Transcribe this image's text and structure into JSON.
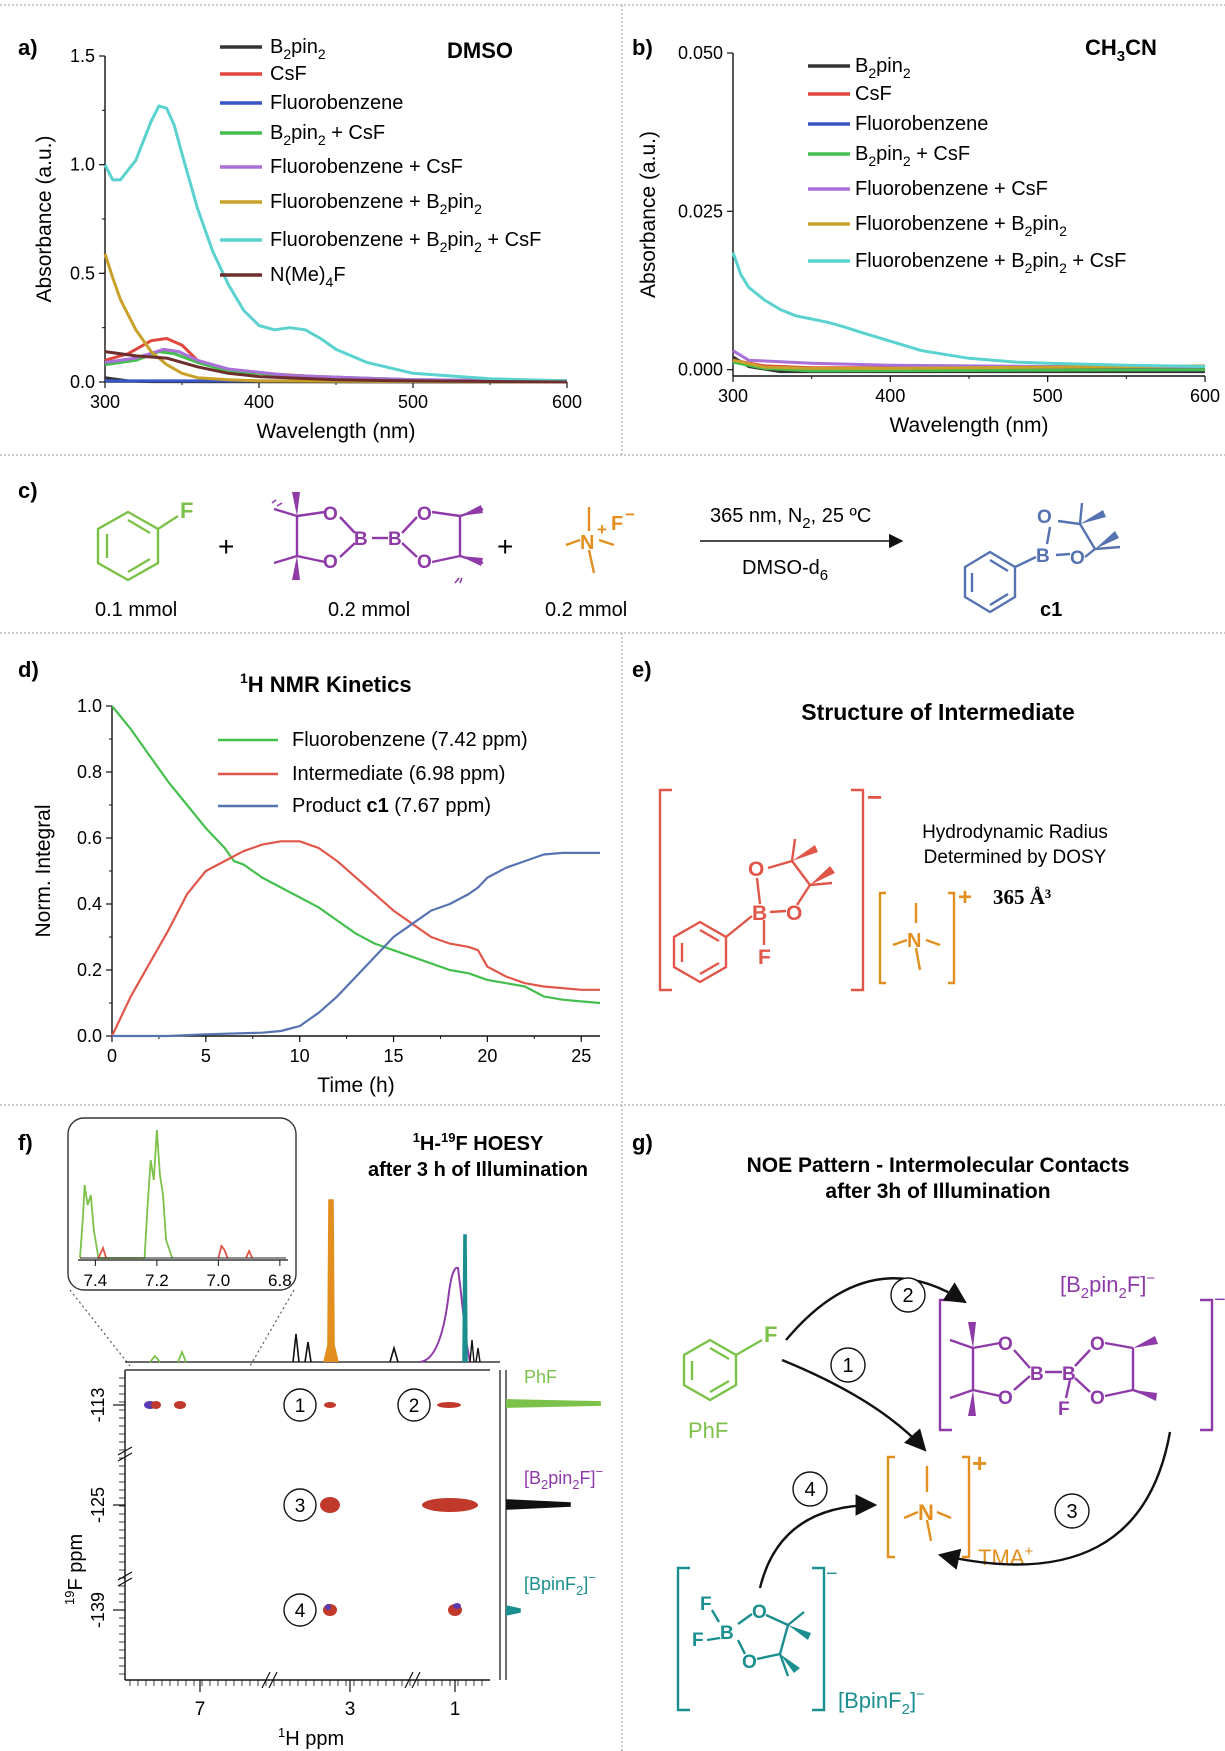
{
  "colors": {
    "black": "#333333",
    "red": "#e0463c",
    "blue": "#3a55c4",
    "green": "#44bf4e",
    "purple": "#a970d8",
    "gold": "#c9a12a",
    "cyan": "#5ad2cf",
    "brown": "#6e2e2e",
    "phf_green": "#7cc24a",
    "b2pin_purple": "#8e3aa8",
    "tma_orange": "#e38f1f",
    "product_blue": "#5573b0",
    "interm_red": "#e0574a",
    "teal": "#1b8f8f",
    "cross_red": "#c0392b",
    "cross_blue": "#5a3ab0",
    "border": "#9a9a9a"
  },
  "panels": {
    "a": {
      "letter": "a)",
      "solvent": "DMSO"
    },
    "b": {
      "letter": "b)",
      "solvent": "CH₃CN"
    },
    "c": {
      "letter": "c)"
    },
    "d": {
      "letter": "d)"
    },
    "e": {
      "letter": "e)"
    },
    "f": {
      "letter": "f)"
    },
    "g": {
      "letter": "g)"
    }
  },
  "chart_data": [
    {
      "id": "a",
      "type": "line",
      "xlabel": "Wavelength (nm)",
      "ylabel": "Absorbance (a.u.)",
      "xlim": [
        300,
        600
      ],
      "ylim": [
        0,
        1.5
      ],
      "xticks": [
        "300",
        "400",
        "500",
        "600"
      ],
      "yticks": [
        "0.0",
        "0.5",
        "1.0",
        "1.5"
      ],
      "legend_position": "top-right",
      "series": [
        {
          "name": "B₂pin₂",
          "color": "#333333",
          "x": [
            300,
            315,
            330,
            600
          ],
          "y": [
            0.02,
            0.005,
            0.002,
            0.0
          ]
        },
        {
          "name": "CsF",
          "color": "#e0463c",
          "x": [
            300,
            315,
            330,
            340,
            350,
            360,
            375,
            400,
            450,
            500,
            600
          ],
          "y": [
            0.1,
            0.13,
            0.19,
            0.2,
            0.17,
            0.1,
            0.06,
            0.04,
            0.02,
            0.01,
            0.005
          ]
        },
        {
          "name": "Fluorobenzene",
          "color": "#3a55c4",
          "x": [
            300,
            600
          ],
          "y": [
            0.005,
            0.005
          ]
        },
        {
          "name": "B₂pin₂ + CsF",
          "color": "#44bf4e",
          "x": [
            300,
            320,
            335,
            345,
            360,
            380,
            420,
            500,
            600
          ],
          "y": [
            0.08,
            0.1,
            0.14,
            0.13,
            0.09,
            0.05,
            0.03,
            0.01,
            0.005
          ]
        },
        {
          "name": "Fluorobenzene + CsF",
          "color": "#a970d8",
          "x": [
            300,
            320,
            338,
            348,
            360,
            380,
            420,
            500,
            600
          ],
          "y": [
            0.09,
            0.11,
            0.15,
            0.14,
            0.1,
            0.06,
            0.03,
            0.01,
            0.005
          ]
        },
        {
          "name": "Fluorobenzene + B₂pin₂",
          "color": "#c9a12a",
          "x": [
            300,
            305,
            310,
            320,
            330,
            340,
            350,
            360,
            380,
            400,
            600
          ],
          "y": [
            0.59,
            0.48,
            0.38,
            0.24,
            0.14,
            0.08,
            0.04,
            0.02,
            0.01,
            0.005,
            0.0
          ]
        },
        {
          "name": "Fluorobenzene + B₂pin₂ + CsF",
          "color": "#5ad2cf",
          "x": [
            300,
            305,
            310,
            320,
            330,
            335,
            340,
            345,
            350,
            360,
            370,
            380,
            390,
            400,
            410,
            420,
            430,
            440,
            450,
            470,
            500,
            550,
            600
          ],
          "y": [
            1.0,
            0.93,
            0.93,
            1.02,
            1.2,
            1.27,
            1.26,
            1.18,
            1.05,
            0.8,
            0.6,
            0.45,
            0.33,
            0.26,
            0.24,
            0.25,
            0.24,
            0.2,
            0.15,
            0.09,
            0.04,
            0.015,
            0.005
          ]
        },
        {
          "name": "N(Me)₄F",
          "color": "#6e2e2e",
          "x": [
            300,
            320,
            340,
            360,
            380,
            400,
            450,
            500,
            600
          ],
          "y": [
            0.14,
            0.12,
            0.11,
            0.07,
            0.04,
            0.025,
            0.01,
            0.005,
            0.0
          ]
        }
      ]
    },
    {
      "id": "b",
      "type": "line",
      "xlabel": "Wavelength (nm)",
      "ylabel": "Absorbance (a.u.)",
      "xlim": [
        300,
        600
      ],
      "ylim": [
        -0.001,
        0.05
      ],
      "xticks": [
        "300",
        "400",
        "500",
        "600"
      ],
      "yticks": [
        "0.000",
        "0.025",
        "0.050"
      ],
      "legend_position": "top-right",
      "series": [
        {
          "name": "B₂pin₂",
          "color": "#333333",
          "x": [
            300,
            310,
            330,
            600
          ],
          "y": [
            0.002,
            0.0005,
            -0.0003,
            -0.0003
          ]
        },
        {
          "name": "CsF",
          "color": "#e0463c",
          "x": [
            300,
            320,
            350,
            600
          ],
          "y": [
            0.0015,
            0.0006,
            0.0003,
            0.0003
          ]
        },
        {
          "name": "Fluorobenzene",
          "color": "#3a55c4",
          "x": [
            300,
            320,
            350,
            600
          ],
          "y": [
            0.0012,
            0.0004,
            0.0,
            0.0
          ]
        },
        {
          "name": "B₂pin₂ + CsF",
          "color": "#44bf4e",
          "x": [
            300,
            320,
            350,
            600
          ],
          "y": [
            0.0012,
            0.0002,
            -0.0002,
            0.0
          ]
        },
        {
          "name": "Fluorobenzene + CsF",
          "color": "#a970d8",
          "x": [
            300,
            310,
            350,
            400,
            500,
            600
          ],
          "y": [
            0.003,
            0.0015,
            0.001,
            0.0007,
            0.0005,
            0.0005
          ]
        },
        {
          "name": "Fluorobenzene + B₂pin₂",
          "color": "#c9a12a",
          "x": [
            300,
            320,
            350,
            400,
            500,
            600
          ],
          "y": [
            0.0015,
            0.0004,
            0.0002,
            0.0002,
            0.0004,
            0.0006
          ]
        },
        {
          "name": "Fluorobenzene + B₂pin₂ + CsF",
          "color": "#5ad2cf",
          "x": [
            300,
            305,
            310,
            320,
            330,
            340,
            350,
            360,
            370,
            380,
            400,
            420,
            450,
            480,
            500,
            550,
            600
          ],
          "y": [
            0.0185,
            0.015,
            0.013,
            0.011,
            0.0095,
            0.0085,
            0.008,
            0.0075,
            0.0068,
            0.006,
            0.0045,
            0.003,
            0.0018,
            0.0012,
            0.001,
            0.0007,
            0.0005
          ]
        }
      ]
    },
    {
      "id": "d",
      "type": "line",
      "title": "¹H NMR Kinetics",
      "xlabel": "Time (h)",
      "ylabel": "Norm. Integral",
      "xlim": [
        0,
        26
      ],
      "ylim": [
        0,
        1.0
      ],
      "xticks": [
        "0",
        "5",
        "10",
        "15",
        "20",
        "25"
      ],
      "yticks": [
        "0.0",
        "0.2",
        "0.4",
        "0.6",
        "0.8",
        "1.0"
      ],
      "legend_position": "top-right",
      "series": [
        {
          "name": "Fluorobenzene (7.42 ppm)",
          "color": "#44bf4e",
          "x": [
            0,
            1,
            2,
            3,
            4,
            5,
            6,
            6.5,
            7,
            8,
            9,
            10,
            11,
            12,
            13,
            14,
            15,
            16,
            17,
            18,
            19,
            20,
            21,
            22,
            23,
            24,
            25,
            26
          ],
          "y": [
            1.0,
            0.93,
            0.85,
            0.77,
            0.7,
            0.63,
            0.57,
            0.53,
            0.52,
            0.48,
            0.45,
            0.42,
            0.39,
            0.35,
            0.31,
            0.28,
            0.26,
            0.24,
            0.22,
            0.2,
            0.19,
            0.17,
            0.16,
            0.15,
            0.12,
            0.11,
            0.105,
            0.1
          ]
        },
        {
          "name": "Intermediate (6.98 ppm)",
          "color": "#e0574a",
          "x": [
            0,
            1,
            2,
            3,
            4,
            5,
            6,
            7,
            8,
            9,
            10,
            11,
            12,
            13,
            14,
            15,
            16,
            17,
            18,
            19,
            19.5,
            20,
            21,
            22,
            23,
            24,
            25,
            26
          ],
          "y": [
            0.0,
            0.12,
            0.22,
            0.32,
            0.43,
            0.5,
            0.53,
            0.56,
            0.58,
            0.59,
            0.59,
            0.57,
            0.53,
            0.48,
            0.43,
            0.38,
            0.34,
            0.3,
            0.28,
            0.27,
            0.26,
            0.21,
            0.18,
            0.16,
            0.15,
            0.145,
            0.14,
            0.14
          ]
        },
        {
          "name": "Product c1 (7.67 ppm)",
          "color": "#5573b0",
          "x": [
            0,
            3,
            5,
            8,
            9,
            10,
            11,
            12,
            13,
            14,
            15,
            16,
            17,
            18,
            19,
            19.5,
            20,
            21,
            22,
            23,
            24,
            25,
            26
          ],
          "y": [
            0.0,
            0.0,
            0.005,
            0.01,
            0.015,
            0.03,
            0.07,
            0.12,
            0.18,
            0.24,
            0.3,
            0.34,
            0.38,
            0.4,
            0.43,
            0.45,
            0.48,
            0.51,
            0.53,
            0.55,
            0.555,
            0.555,
            0.555
          ]
        }
      ]
    }
  ],
  "panel_b_solvent_parts": {
    "main": "CH",
    "sub1": "3",
    "rest": "CN"
  },
  "legend_a": [
    {
      "pre": "B",
      "sub": "2",
      "post": "pin",
      "sub2": "2",
      "end": ""
    },
    {
      "pre": "CsF",
      "sub": "",
      "post": "",
      "sub2": "",
      "end": ""
    },
    {
      "pre": "Fluorobenzene",
      "sub": "",
      "post": "",
      "sub2": "",
      "end": ""
    },
    {
      "pre": "B",
      "sub": "2",
      "post": "pin",
      "sub2": "2",
      "end": " + CsF"
    },
    {
      "pre": "Fluorobenzene + CsF",
      "sub": "",
      "post": "",
      "sub2": "",
      "end": ""
    },
    {
      "pre": "Fluorobenzene + B",
      "sub": "2",
      "post": "pin",
      "sub2": "2",
      "end": ""
    },
    {
      "pre": "Fluorobenzene + B",
      "sub": "2",
      "post": "pin",
      "sub2": "2",
      "end": " + CsF"
    },
    {
      "pre": "N(Me)",
      "sub": "4",
      "post": "F",
      "sub2": "",
      "end": ""
    }
  ],
  "reaction": {
    "amount_phf": "0.1 mmol",
    "amount_b2pin2": "0.2 mmol",
    "amount_tmaf": "0.2 mmol",
    "plus": "+",
    "conditions_pre": "365 nm, N",
    "conditions_sub": "2",
    "conditions_post": ", 25 ºC",
    "solvent_pre": "DMSO-d",
    "solvent_sub": "6",
    "product_label": "c1",
    "atom_F": "F",
    "atom_O": "O",
    "atom_B": "B",
    "atom_N": "N",
    "plus_charge": "+",
    "minus_charge": "−"
  },
  "panel_d": {
    "title_sup": "1",
    "title_main": "H NMR Kinetics",
    "legend": [
      {
        "text": "Fluorobenzene (7.42 ppm)",
        "bold": ""
      },
      {
        "text": "Intermediate (6.98 ppm)",
        "bold": ""
      },
      {
        "text": "Product ",
        "bold": "c1",
        "after": " (7.67 ppm)"
      }
    ]
  },
  "panel_e": {
    "title": "Structure of Intermediate",
    "radius_line1": "Hydrodynamic Radius",
    "radius_line2": "Determined by DOSY",
    "radius_value": "365 Å³",
    "charge_minus": "−",
    "charge_plus": "+"
  },
  "panel_f": {
    "title_line1_sup1": "1",
    "title_line1_a": "H-",
    "title_line1_sup2": "19",
    "title_line1_b": "F HOESY",
    "title_line2": "after 3 h of Illumination",
    "inset_ticks": [
      "7.4",
      "7.2",
      "7.0",
      "6.8"
    ],
    "x_ticks": [
      "7",
      "3",
      "1"
    ],
    "y_ticks": [
      "-113",
      "-125",
      "-139"
    ],
    "xlabel_sup": "1",
    "xlabel_main": "H ppm",
    "ylabel_sup": "19",
    "ylabel_main": "F ppm",
    "circles": [
      "1",
      "2",
      "3",
      "4"
    ],
    "label_phf": "PhF",
    "label_b2pin2f_pre": "[B",
    "label_b2pin2f_sub": "2",
    "label_b2pin2f_mid": "pin",
    "label_b2pin2f_sub2": "2",
    "label_b2pin2f_post": "F]",
    "label_b2pin2f_sup": "−",
    "label_bpinf2_pre": "[BpinF",
    "label_bpinf2_sub": "2",
    "label_bpinf2_post": "]",
    "label_bpinf2_sup": "−"
  },
  "panel_g": {
    "title_line1": "NOE Pattern - Intermolecular Contacts",
    "title_line2": "after 3h of Illumination",
    "label_phf": "PhF",
    "label_tma": "TMA",
    "label_tma_sup": "+",
    "label_b2pin2f_pre": "[B",
    "label_b2pin2f_sub": "2",
    "label_b2pin2f_mid": "pin",
    "label_b2pin2f_sub2": "2",
    "label_b2pin2f_post": "F]",
    "label_b2pin2f_sup": "−",
    "label_bpinf2_pre": "[BpinF",
    "label_bpinf2_sub": "2",
    "label_bpinf2_post": "]",
    "label_bpinf2_sup": "−",
    "circles": [
      "1",
      "2",
      "3",
      "4"
    ]
  }
}
